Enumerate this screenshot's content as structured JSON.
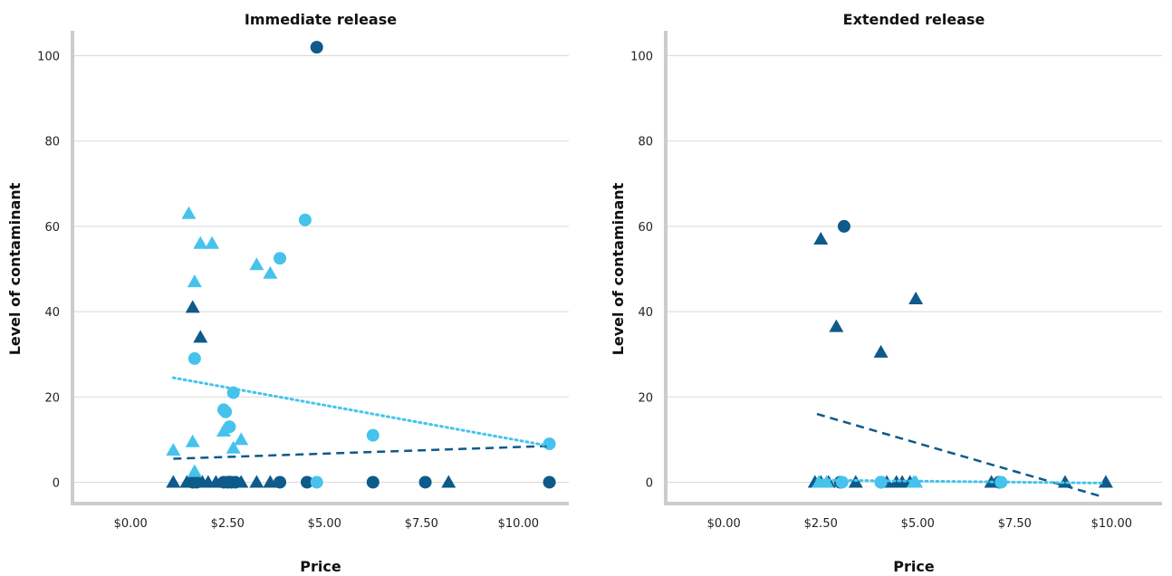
{
  "colors": {
    "dark": "#0e5a8a",
    "light": "#45c3ec",
    "grid": "#d9d9d9",
    "axis": "#cccccc"
  },
  "chart_data": [
    {
      "type": "scatter",
      "title": "Immediate release",
      "xlabel": "Price",
      "ylabel": "Level of contaminant",
      "xlim": [
        -1.5,
        11.3
      ],
      "ylim": [
        -5,
        105
      ],
      "xticks": [
        0,
        2.5,
        5,
        7.5,
        10
      ],
      "xtick_labels": [
        "$0.00",
        "$2.50",
        "$5.00",
        "$7.50",
        "$10.00"
      ],
      "yticks": [
        0,
        20,
        40,
        60,
        80,
        100
      ],
      "ytick_labels": [
        "0",
        "20",
        "40",
        "60",
        "80",
        "100"
      ],
      "grid": true,
      "series": [
        {
          "color": "dark",
          "marker": "circle",
          "points": [
            [
              4.8,
              102
            ],
            [
              1.6,
              0
            ],
            [
              1.7,
              0
            ],
            [
              2.4,
              0
            ],
            [
              2.5,
              0
            ],
            [
              2.6,
              0
            ],
            [
              2.7,
              0
            ],
            [
              3.85,
              0
            ],
            [
              4.55,
              0
            ],
            [
              6.25,
              0
            ],
            [
              7.6,
              0
            ],
            [
              10.8,
              0
            ]
          ]
        },
        {
          "color": "dark",
          "marker": "triangle",
          "points": [
            [
              1.6,
              41
            ],
            [
              1.8,
              34
            ],
            [
              1.1,
              0
            ],
            [
              1.45,
              0
            ],
            [
              1.55,
              0
            ],
            [
              1.85,
              0
            ],
            [
              2.0,
              0
            ],
            [
              2.2,
              0
            ],
            [
              2.55,
              0
            ],
            [
              2.85,
              0
            ],
            [
              3.25,
              0
            ],
            [
              3.6,
              0
            ],
            [
              8.2,
              0
            ]
          ]
        },
        {
          "color": "light",
          "marker": "circle",
          "points": [
            [
              4.5,
              61.5
            ],
            [
              3.85,
              52.5
            ],
            [
              1.65,
              29
            ],
            [
              2.65,
              21
            ],
            [
              2.4,
              17
            ],
            [
              2.45,
              16.5
            ],
            [
              2.55,
              13
            ],
            [
              6.25,
              11
            ],
            [
              10.8,
              9
            ],
            [
              4.8,
              0
            ]
          ]
        },
        {
          "color": "light",
          "marker": "triangle",
          "points": [
            [
              1.5,
              63
            ],
            [
              1.8,
              56
            ],
            [
              2.1,
              56
            ],
            [
              1.65,
              47
            ],
            [
              3.25,
              51
            ],
            [
              3.6,
              49
            ],
            [
              1.1,
              7.5
            ],
            [
              1.6,
              9.5
            ],
            [
              2.4,
              12
            ],
            [
              2.85,
              10
            ],
            [
              2.65,
              8
            ],
            [
              1.65,
              2.5
            ]
          ]
        }
      ],
      "trendlines": [
        {
          "color": "dark",
          "style": "dashed",
          "from": [
            1.1,
            5.5
          ],
          "to": [
            10.8,
            8.5
          ]
        },
        {
          "color": "light",
          "style": "dotted",
          "from": [
            1.1,
            24.5
          ],
          "to": [
            10.8,
            8.5
          ]
        }
      ]
    },
    {
      "type": "scatter",
      "title": "Extended release",
      "xlabel": "Price",
      "ylabel": "Level of contaminant",
      "xlim": [
        -1.5,
        11.3
      ],
      "ylim": [
        -5,
        105
      ],
      "xticks": [
        0,
        2.5,
        5,
        7.5,
        10
      ],
      "xtick_labels": [
        "$0.00",
        "$2.50",
        "$5.00",
        "$7.50",
        "$10.00"
      ],
      "yticks": [
        0,
        20,
        40,
        60,
        80,
        100
      ],
      "ytick_labels": [
        "0",
        "20",
        "40",
        "60",
        "80",
        "100"
      ],
      "grid": true,
      "series": [
        {
          "color": "dark",
          "marker": "circle",
          "points": [
            [
              3.1,
              60
            ],
            [
              3.0,
              0
            ],
            [
              4.05,
              0
            ],
            [
              7.1,
              0
            ]
          ]
        },
        {
          "color": "dark",
          "marker": "triangle",
          "points": [
            [
              2.5,
              57
            ],
            [
              2.9,
              36.5
            ],
            [
              4.95,
              43
            ],
            [
              4.05,
              30.5
            ],
            [
              2.35,
              0
            ],
            [
              2.5,
              0
            ],
            [
              2.7,
              0
            ],
            [
              3.4,
              0
            ],
            [
              4.2,
              0
            ],
            [
              4.45,
              0
            ],
            [
              4.6,
              0
            ],
            [
              4.8,
              0
            ],
            [
              6.9,
              0
            ],
            [
              8.8,
              0
            ],
            [
              9.85,
              0
            ]
          ]
        },
        {
          "color": "light",
          "marker": "circle",
          "points": [
            [
              3.05,
              0
            ],
            [
              4.05,
              0
            ],
            [
              7.15,
              0
            ]
          ]
        },
        {
          "color": "light",
          "marker": "triangle",
          "points": [
            [
              2.45,
              0
            ],
            [
              2.65,
              0
            ],
            [
              4.9,
              0
            ],
            [
              4.95,
              0
            ]
          ]
        }
      ],
      "trendlines": [
        {
          "color": "dark",
          "style": "dashed",
          "from": [
            2.4,
            16
          ],
          "to": [
            9.8,
            -3.5
          ]
        },
        {
          "color": "light",
          "style": "dotted",
          "from": [
            2.4,
            0.5
          ],
          "to": [
            9.8,
            -0.2
          ]
        }
      ]
    }
  ]
}
